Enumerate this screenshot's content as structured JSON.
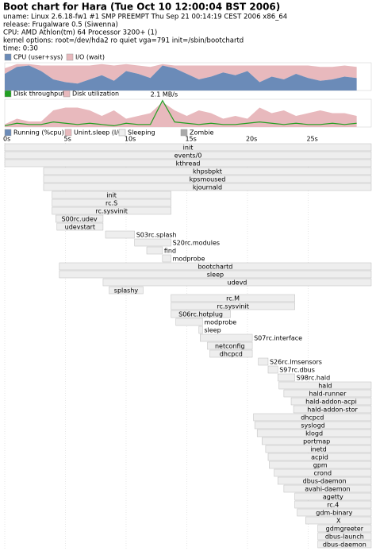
{
  "chart_data": {
    "type": "gantt",
    "title": "Boot chart for Hara (Tue Oct 10 12:00:04 BST 2006)",
    "header": [
      "uname: Linux 2.6.18-fw1 #1 SMP PREEMPT Thu Sep 21 00:14:19 CEST 2006 x86_64",
      "release: Frugalware 0.5 (Siwenna)",
      "CPU: AMD Athlon(tm) 64 Processor 3200+ (1)",
      "kernel options: root=/dev/hda2 ro quiet vga=791 init=/sbin/bootchartd",
      "time: 0:30"
    ],
    "xlim": [
      0,
      30.2
    ],
    "xticks": [
      {
        "value": 0,
        "label": "0s"
      },
      {
        "value": 5,
        "label": "5s"
      },
      {
        "value": 10,
        "label": "10s"
      },
      {
        "value": 15,
        "label": "15s"
      },
      {
        "value": 20,
        "label": "20s"
      },
      {
        "value": 25,
        "label": "25s"
      }
    ],
    "cpu_chart": {
      "series": [
        {
          "name": "CPU (user+sys)",
          "color": "#6b8bb8",
          "values": [
            60,
            85,
            90,
            70,
            40,
            30,
            25,
            40,
            55,
            35,
            70,
            60,
            45,
            90,
            80,
            60,
            40,
            50,
            65,
            55,
            70,
            30,
            50,
            40,
            60,
            45,
            35,
            40,
            50,
            45
          ]
        },
        {
          "name": "I/O (wait)",
          "color": "#e8b9bd",
          "values": [
            20,
            10,
            5,
            20,
            50,
            60,
            65,
            50,
            40,
            55,
            25,
            30,
            40,
            5,
            10,
            30,
            50,
            40,
            25,
            35,
            20,
            60,
            40,
            50,
            30,
            45,
            50,
            45,
            40,
            40
          ]
        }
      ],
      "x": [
        0,
        1,
        2,
        3,
        4,
        5,
        6,
        7,
        8,
        9,
        10,
        11,
        12,
        13,
        14,
        15,
        16,
        17,
        18,
        19,
        20,
        21,
        22,
        23,
        24,
        25,
        26,
        27,
        28,
        29
      ],
      "ylim": [
        0,
        100
      ]
    },
    "disk_chart": {
      "series": [
        {
          "name": "Disk throughput",
          "color": "#22a022",
          "values": [
            0.1,
            0.3,
            0.2,
            0.2,
            0.4,
            0.3,
            0.2,
            0.3,
            0.2,
            0.1,
            0.3,
            0.2,
            0.2,
            2.1,
            0.4,
            0.3,
            0.2,
            0.3,
            0.2,
            0.2,
            0.3,
            0.4,
            0.3,
            0.2,
            0.3,
            0.2,
            0.2,
            0.3,
            0.2,
            0.3
          ]
        },
        {
          "name": "Disk utilization",
          "color": "#e8b9bd",
          "axis": "y2",
          "values": [
            10,
            30,
            20,
            20,
            60,
            70,
            70,
            60,
            40,
            60,
            30,
            40,
            50,
            90,
            60,
            40,
            60,
            50,
            30,
            40,
            30,
            70,
            50,
            60,
            40,
            50,
            60,
            50,
            50,
            40
          ]
        }
      ],
      "x": [
        0,
        1,
        2,
        3,
        4,
        5,
        6,
        7,
        8,
        9,
        10,
        11,
        12,
        13,
        14,
        15,
        16,
        17,
        18,
        19,
        20,
        21,
        22,
        23,
        24,
        25,
        26,
        27,
        28,
        29
      ],
      "ylim": [
        0,
        2.2
      ],
      "y2lim": [
        0,
        100
      ],
      "annotation": "2.1 MB/s"
    },
    "states": [
      {
        "name": "Running (%cpu)",
        "color": "#6b8bb8"
      },
      {
        "name": "Unint.sleep (I/O)",
        "color": "#e8b9bd"
      },
      {
        "name": "Sleeping",
        "color": "#eeeeee"
      },
      {
        "name": "Zombie",
        "color": "#aaaaaa"
      }
    ],
    "processes": [
      {
        "name": "init",
        "start": 0,
        "end": 30.2
      },
      {
        "name": "events/0",
        "start": 0,
        "end": 30.2
      },
      {
        "name": "kthread",
        "start": 0,
        "end": 30.2
      },
      {
        "name": "khpsbpkt",
        "start": 3.2,
        "end": 30.2
      },
      {
        "name": "kpsmoused",
        "start": 3.2,
        "end": 30.2
      },
      {
        "name": "kjournald",
        "start": 3.2,
        "end": 30.2
      },
      {
        "name": "init",
        "start": 3.9,
        "end": 13.7
      },
      {
        "name": "rc.S",
        "start": 3.9,
        "end": 13.7
      },
      {
        "name": "rc.sysvinit",
        "start": 3.9,
        "end": 13.7
      },
      {
        "name": "S00rc.udev",
        "start": 4.2,
        "end": 8.1
      },
      {
        "name": "udevstart",
        "start": 4.3,
        "end": 8.1
      },
      {
        "name": "S03rc.splash",
        "start": 8.3,
        "end": 10.7
      },
      {
        "name": "S20rc.modules",
        "start": 10.7,
        "end": 13.7
      },
      {
        "name": "find",
        "start": 11.7,
        "end": 13
      },
      {
        "name": "modprobe",
        "start": 13,
        "end": 13.7
      },
      {
        "name": "bootchartd",
        "start": 4.5,
        "end": 30.2
      },
      {
        "name": "sleep",
        "start": 4.5,
        "end": 30.2
      },
      {
        "name": "udevd",
        "start": 8.1,
        "end": 30.2
      },
      {
        "name": "splashy",
        "start": 8.6,
        "end": 11.4
      },
      {
        "name": "rc.M",
        "start": 13.7,
        "end": 23.9
      },
      {
        "name": "rc.sysvinit",
        "start": 13.7,
        "end": 23.9
      },
      {
        "name": "S06rc.hotplug",
        "start": 13.7,
        "end": 18.6
      },
      {
        "name": "modprobe",
        "start": 14.1,
        "end": 16.3
      },
      {
        "name": "sleep",
        "start": 16,
        "end": 16.3
      },
      {
        "name": "S07rc.interface",
        "start": 16.1,
        "end": 20.4
      },
      {
        "name": "netconfig",
        "start": 16.7,
        "end": 20.4
      },
      {
        "name": "dhcpcd",
        "start": 16.9,
        "end": 20.4
      },
      {
        "name": "S26rc.lmsensors",
        "start": 20.9,
        "end": 21.7
      },
      {
        "name": "S97rc.dbus",
        "start": 21.7,
        "end": 22.5
      },
      {
        "name": "S98rc.hald",
        "start": 22.5,
        "end": 23.9
      },
      {
        "name": "hald",
        "start": 22.6,
        "end": 30.2
      },
      {
        "name": "hald-runner",
        "start": 23,
        "end": 30.2
      },
      {
        "name": "hald-addon-acpi",
        "start": 23.6,
        "end": 30.2
      },
      {
        "name": "hald-addon-stor",
        "start": 23.8,
        "end": 30.2
      },
      {
        "name": "dhcpcd",
        "start": 20.5,
        "end": 30.2
      },
      {
        "name": "syslogd",
        "start": 20.6,
        "end": 30.2
      },
      {
        "name": "klogd",
        "start": 20.8,
        "end": 30.2
      },
      {
        "name": "portmap",
        "start": 21.2,
        "end": 30.2
      },
      {
        "name": "inetd",
        "start": 21.5,
        "end": 30.2
      },
      {
        "name": "acpid",
        "start": 21.7,
        "end": 30.2
      },
      {
        "name": "gpm",
        "start": 21.8,
        "end": 30.2
      },
      {
        "name": "crond",
        "start": 22.2,
        "end": 30.2
      },
      {
        "name": "dbus-daemon",
        "start": 22.5,
        "end": 30.2
      },
      {
        "name": "avahi-daemon",
        "start": 23,
        "end": 30.2
      },
      {
        "name": "agetty",
        "start": 23.9,
        "end": 30.2
      },
      {
        "name": "rc.4",
        "start": 23.9,
        "end": 30.2
      },
      {
        "name": "gdm-binary",
        "start": 24.1,
        "end": 30.2
      },
      {
        "name": "X",
        "start": 24.8,
        "end": 30.2
      },
      {
        "name": "gdmgreeter",
        "start": 25.8,
        "end": 30.2
      },
      {
        "name": "dbus-launch",
        "start": 25.8,
        "end": 30.2
      },
      {
        "name": "dbus-daemon",
        "start": 25.8,
        "end": 30.2
      }
    ]
  }
}
